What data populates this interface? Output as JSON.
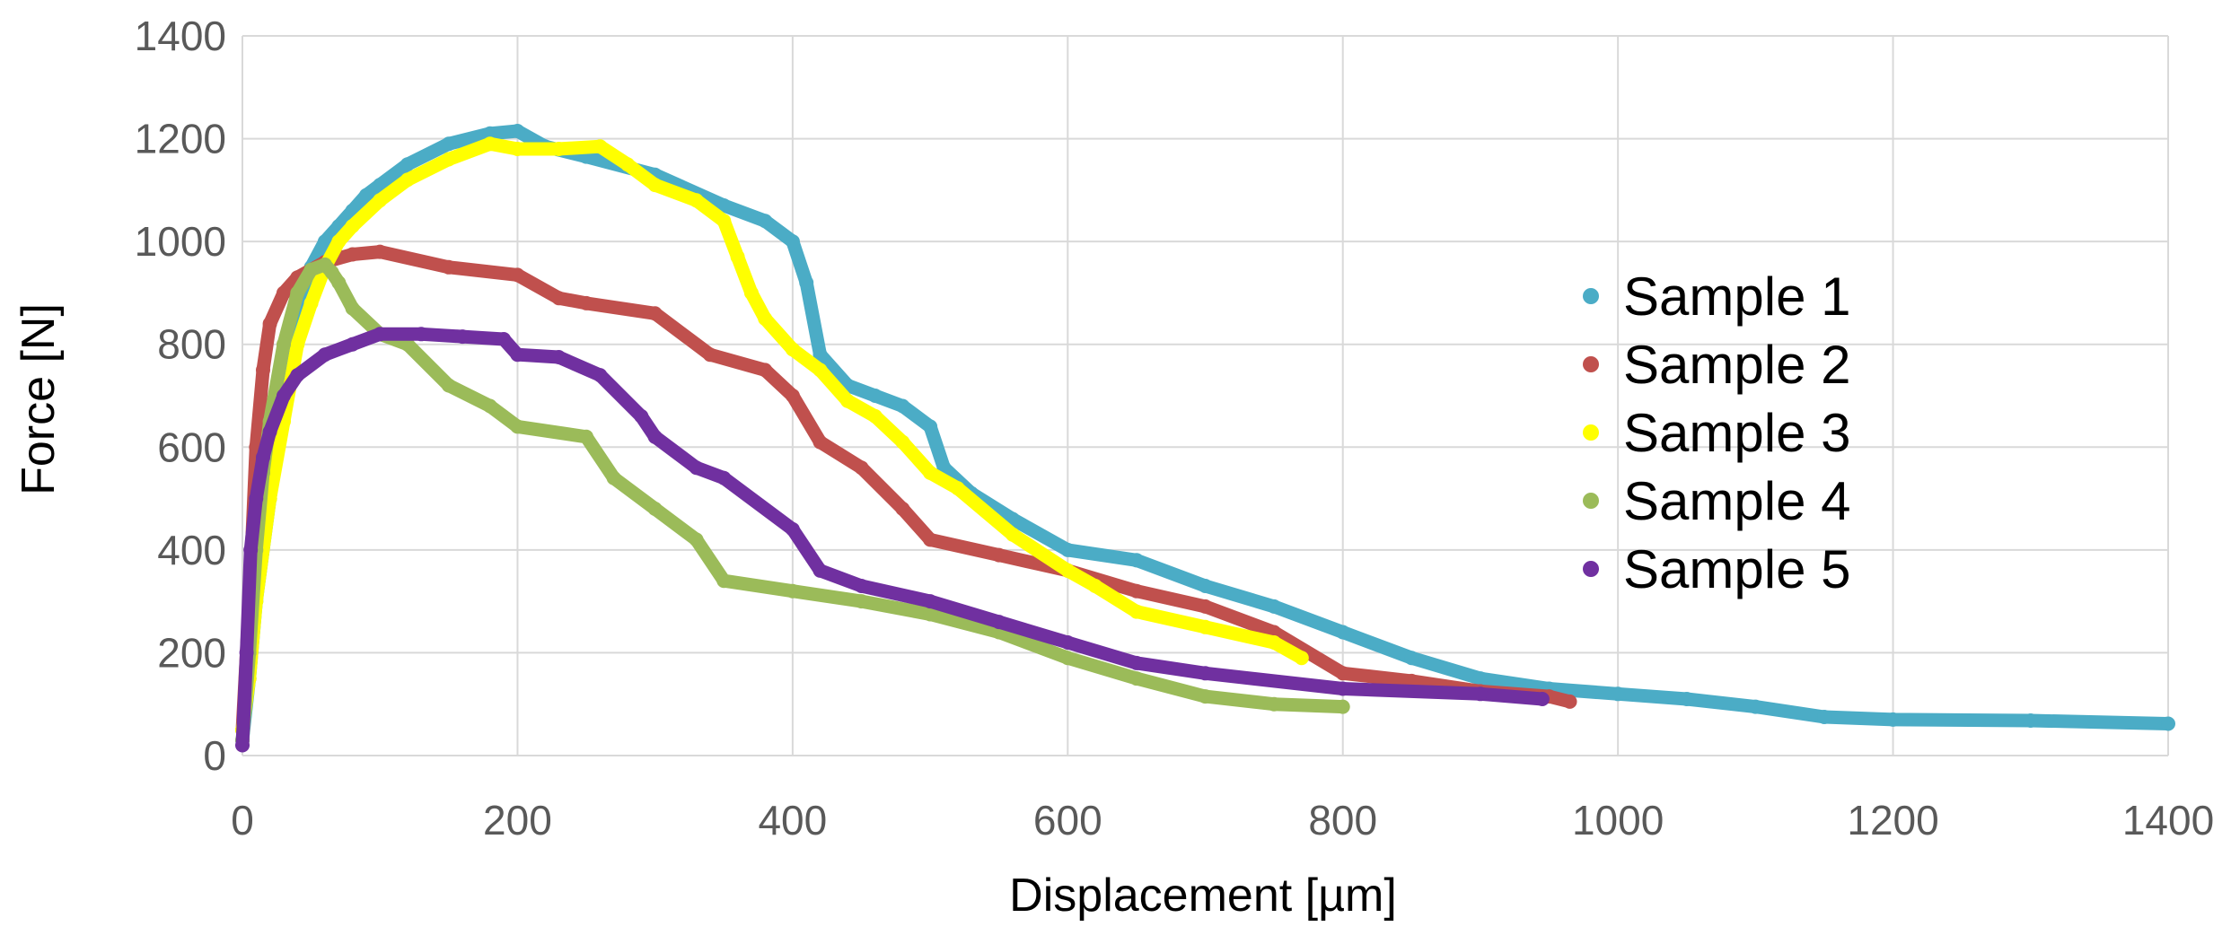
{
  "chart_data": {
    "type": "scatter",
    "title": "",
    "xlabel": "Displacement [µm]",
    "ylabel": "Force [N]",
    "xlim": [
      0,
      1400
    ],
    "ylim": [
      0,
      1400
    ],
    "xticks": [
      "0",
      "200",
      "400",
      "600",
      "800",
      "1000",
      "1200",
      "1400"
    ],
    "yticks": [
      "0",
      "200",
      "400",
      "600",
      "800",
      "1000",
      "1200",
      "1400"
    ],
    "grid": true,
    "legend_position": "right",
    "series": [
      {
        "name": "Sample 1",
        "color": "#4BACC6",
        "x": [
          0,
          5,
          10,
          20,
          30,
          40,
          50,
          60,
          70,
          80,
          90,
          100,
          120,
          150,
          180,
          200,
          220,
          250,
          300,
          350,
          380,
          400,
          410,
          420,
          440,
          460,
          480,
          500,
          510,
          530,
          560,
          600,
          650,
          700,
          750,
          800,
          850,
          900,
          950,
          1000,
          1050,
          1100,
          1150,
          1200,
          1300,
          1400
        ],
        "y": [
          30,
          150,
          300,
          500,
          700,
          850,
          950,
          1000,
          1030,
          1060,
          1090,
          1110,
          1150,
          1190,
          1210,
          1215,
          1185,
          1165,
          1130,
          1070,
          1040,
          1000,
          920,
          780,
          720,
          700,
          680,
          640,
          560,
          510,
          460,
          400,
          380,
          330,
          290,
          240,
          190,
          150,
          130,
          120,
          110,
          95,
          75,
          70,
          68,
          62
        ]
      },
      {
        "name": "Sample 2",
        "color": "#C0504D",
        "x": [
          0,
          5,
          10,
          15,
          20,
          30,
          40,
          60,
          80,
          100,
          150,
          200,
          230,
          250,
          300,
          340,
          380,
          400,
          420,
          450,
          480,
          500,
          550,
          600,
          650,
          700,
          750,
          800,
          850,
          900,
          950,
          965
        ],
        "y": [
          50,
          300,
          600,
          750,
          840,
          900,
          930,
          960,
          975,
          980,
          950,
          935,
          890,
          880,
          860,
          780,
          750,
          700,
          610,
          560,
          480,
          420,
          390,
          360,
          320,
          290,
          240,
          160,
          145,
          125,
          115,
          105
        ]
      },
      {
        "name": "Sample 3",
        "color": "#FFFF00",
        "x": [
          0,
          5,
          10,
          20,
          30,
          40,
          50,
          60,
          70,
          80,
          100,
          120,
          150,
          180,
          200,
          230,
          260,
          280,
          300,
          330,
          350,
          360,
          370,
          380,
          400,
          420,
          440,
          460,
          480,
          500,
          520,
          560,
          600,
          620,
          650,
          700,
          750,
          770
        ],
        "y": [
          50,
          150,
          300,
          500,
          650,
          800,
          880,
          950,
          1000,
          1030,
          1080,
          1120,
          1160,
          1190,
          1180,
          1180,
          1185,
          1150,
          1110,
          1080,
          1040,
          970,
          900,
          850,
          790,
          750,
          690,
          660,
          610,
          550,
          520,
          430,
          360,
          330,
          280,
          250,
          220,
          190
        ]
      },
      {
        "name": "Sample 4",
        "color": "#9BBB59",
        "x": [
          0,
          5,
          10,
          15,
          20,
          30,
          40,
          50,
          60,
          65,
          70,
          80,
          100,
          120,
          150,
          180,
          200,
          250,
          270,
          300,
          330,
          350,
          400,
          450,
          500,
          550,
          600,
          650,
          700,
          750,
          800
        ],
        "y": [
          30,
          200,
          400,
          550,
          650,
          800,
          900,
          945,
          955,
          940,
          920,
          870,
          820,
          800,
          720,
          680,
          640,
          620,
          540,
          480,
          420,
          340,
          320,
          300,
          275,
          240,
          190,
          150,
          115,
          100,
          95
        ]
      },
      {
        "name": "Sample 5",
        "color": "#7030A0",
        "x": [
          0,
          3,
          6,
          10,
          15,
          20,
          30,
          40,
          60,
          80,
          100,
          130,
          160,
          190,
          200,
          230,
          260,
          290,
          300,
          330,
          350,
          400,
          420,
          450,
          500,
          550,
          600,
          650,
          700,
          800,
          900,
          945
        ],
        "y": [
          20,
          200,
          400,
          500,
          580,
          630,
          700,
          740,
          780,
          800,
          820,
          820,
          815,
          810,
          780,
          775,
          740,
          660,
          620,
          560,
          540,
          440,
          360,
          330,
          300,
          260,
          220,
          180,
          160,
          130,
          120,
          110
        ]
      }
    ]
  }
}
